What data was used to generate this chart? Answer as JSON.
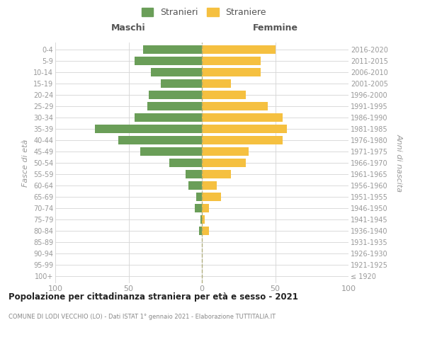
{
  "age_groups": [
    "100+",
    "95-99",
    "90-94",
    "85-89",
    "80-84",
    "75-79",
    "70-74",
    "65-69",
    "60-64",
    "55-59",
    "50-54",
    "45-49",
    "40-44",
    "35-39",
    "30-34",
    "25-29",
    "20-24",
    "15-19",
    "10-14",
    "5-9",
    "0-4"
  ],
  "birth_years": [
    "≤ 1920",
    "1921-1925",
    "1926-1930",
    "1931-1935",
    "1936-1940",
    "1941-1945",
    "1946-1950",
    "1951-1955",
    "1956-1960",
    "1961-1965",
    "1966-1970",
    "1971-1975",
    "1976-1980",
    "1981-1985",
    "1986-1990",
    "1991-1995",
    "1996-2000",
    "2001-2005",
    "2006-2010",
    "2011-2015",
    "2016-2020"
  ],
  "males": [
    0,
    0,
    0,
    0,
    2,
    1,
    5,
    4,
    9,
    11,
    22,
    42,
    57,
    73,
    46,
    37,
    36,
    28,
    35,
    46,
    40
  ],
  "females": [
    0,
    0,
    0,
    0,
    5,
    2,
    5,
    13,
    10,
    20,
    30,
    32,
    55,
    58,
    55,
    45,
    30,
    20,
    40,
    40,
    50
  ],
  "male_color": "#6a9e58",
  "female_color": "#f5c040",
  "male_label": "Stranieri",
  "female_label": "Straniere",
  "title": "Popolazione per cittadinanza straniera per età e sesso - 2021",
  "subtitle": "COMUNE DI LODI VECCHIO (LO) - Dati ISTAT 1° gennaio 2021 - Elaborazione TUTTITALIA.IT",
  "header_left": "Maschi",
  "header_right": "Femmine",
  "ylabel_left": "Fasce di età",
  "ylabel_right": "Anni di nascita",
  "xlim": 100,
  "background_color": "#ffffff",
  "grid_color": "#d5d5d5",
  "bar_height": 0.75,
  "axis_color": "#999999",
  "header_color": "#555555",
  "title_color": "#222222",
  "subtitle_color": "#888888"
}
